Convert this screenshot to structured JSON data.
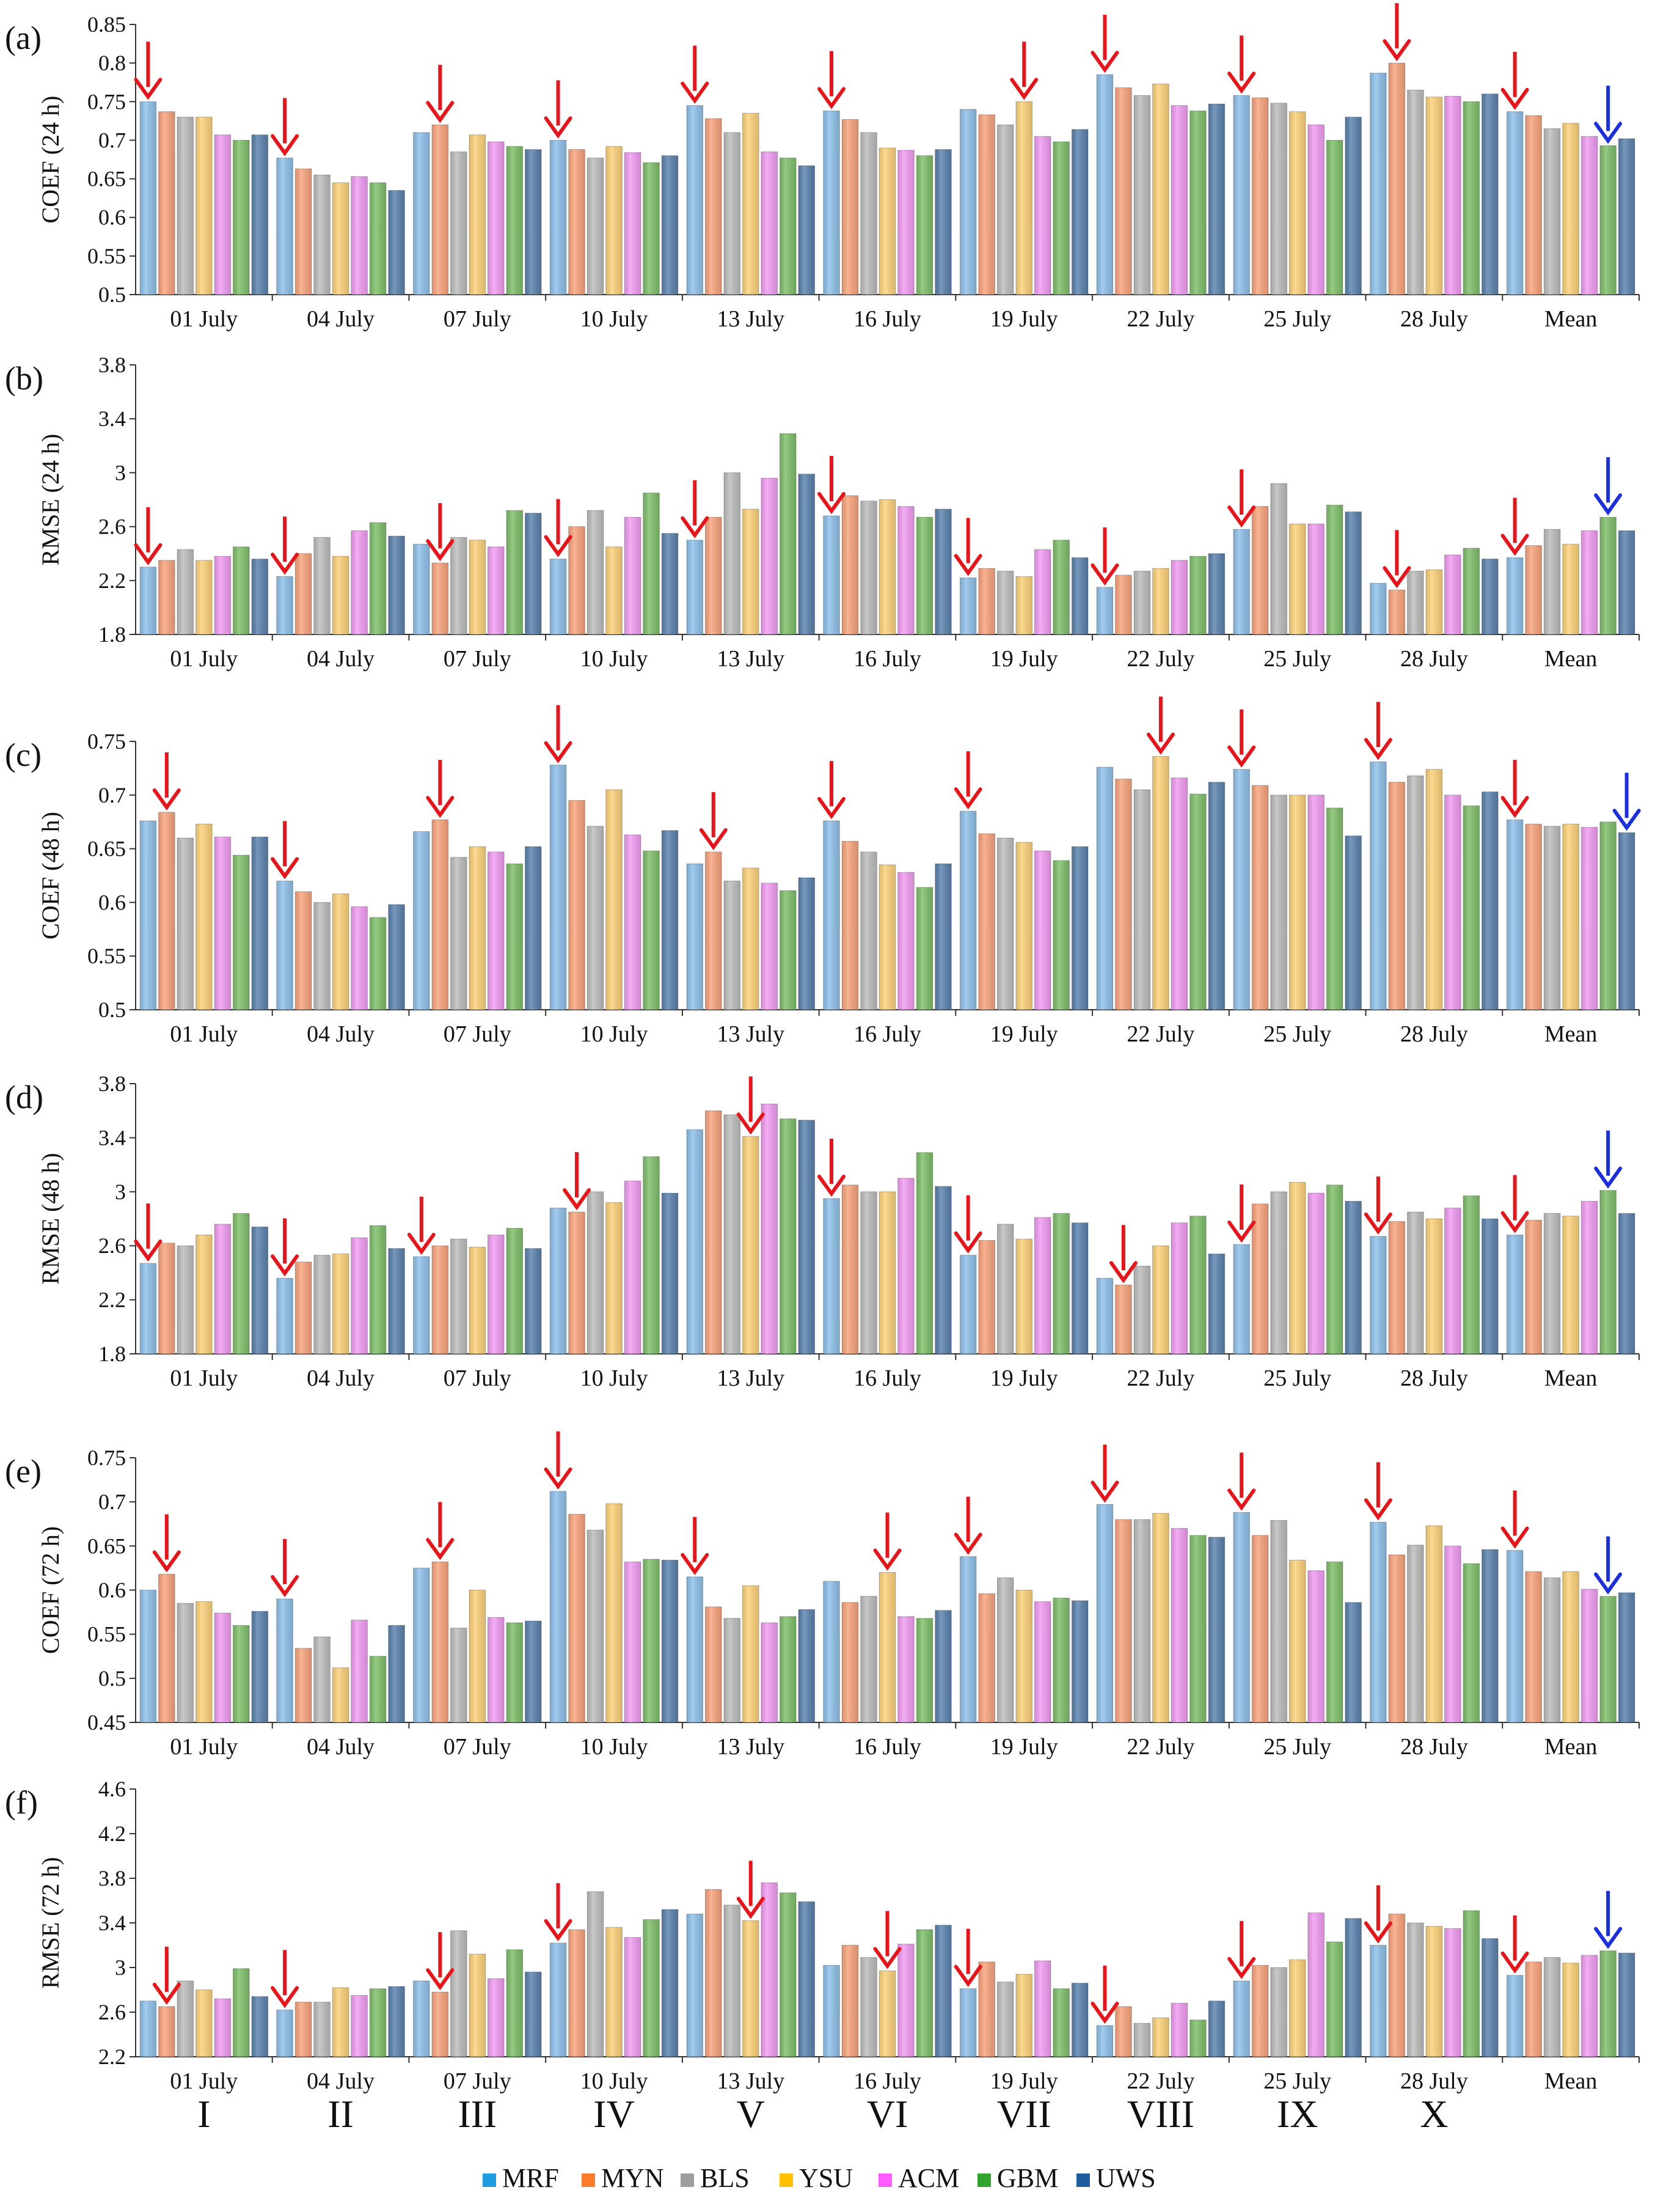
{
  "chart_data": [
    {
      "panel": "(a)",
      "ylabel": "COEF (24 h)",
      "ylim": [
        0.5,
        0.85
      ],
      "ticks": [
        "0.85",
        "0.8",
        "0.75",
        "0.7",
        "0.65",
        "0.6",
        "0.55",
        "0.5"
      ],
      "type": "bar",
      "categories": [
        "01 July",
        "04 July",
        "07 July",
        "10 July",
        "13 July",
        "16 July",
        "19 July",
        "22 July",
        "25 July",
        "28 July",
        "Mean"
      ],
      "values": [
        [
          0.75,
          0.737,
          0.73,
          0.73,
          0.707,
          0.7,
          0.707
        ],
        [
          0.677,
          0.663,
          0.655,
          0.645,
          0.653,
          0.645,
          0.635
        ],
        [
          0.71,
          0.72,
          0.685,
          0.707,
          0.698,
          0.692,
          0.688
        ],
        [
          0.7,
          0.688,
          0.677,
          0.692,
          0.684,
          0.671,
          0.68
        ],
        [
          0.745,
          0.728,
          0.71,
          0.735,
          0.685,
          0.677,
          0.667
        ],
        [
          0.738,
          0.727,
          0.71,
          0.69,
          0.687,
          0.68,
          0.688
        ],
        [
          0.74,
          0.733,
          0.72,
          0.75,
          0.705,
          0.698,
          0.714
        ],
        [
          0.785,
          0.768,
          0.758,
          0.773,
          0.745,
          0.738,
          0.747
        ],
        [
          0.758,
          0.755,
          0.748,
          0.737,
          0.72,
          0.7,
          0.73
        ],
        [
          0.787,
          0.8,
          0.765,
          0.756,
          0.757,
          0.75,
          0.76
        ],
        [
          0.737,
          0.732,
          0.715,
          0.722,
          0.705,
          0.693,
          0.702
        ]
      ],
      "red_arrows": [
        [
          0,
          0
        ],
        [
          1,
          0
        ],
        [
          2,
          1
        ],
        [
          3,
          0
        ],
        [
          4,
          0
        ],
        [
          5,
          0
        ],
        [
          6,
          3
        ],
        [
          7,
          0
        ],
        [
          8,
          0
        ],
        [
          9,
          1
        ],
        [
          10,
          0
        ]
      ],
      "blue_arrows": [
        [
          10,
          5
        ]
      ]
    },
    {
      "panel": "(b)",
      "ylabel": "RMSE (24 h)",
      "ylim": [
        1.8,
        3.8
      ],
      "ticks": [
        "3.8",
        "3.4",
        "3",
        "2.6",
        "2.2",
        "1.8"
      ],
      "type": "bar",
      "categories": [
        "01 July",
        "04 July",
        "07 July",
        "10 July",
        "13 July",
        "16 July",
        "19 July",
        "22 July",
        "25 July",
        "28 July",
        "Mean"
      ],
      "values": [
        [
          2.3,
          2.35,
          2.43,
          2.35,
          2.38,
          2.45,
          2.36
        ],
        [
          2.23,
          2.4,
          2.52,
          2.38,
          2.57,
          2.63,
          2.53
        ],
        [
          2.47,
          2.33,
          2.52,
          2.5,
          2.45,
          2.72,
          2.7
        ],
        [
          2.36,
          2.6,
          2.72,
          2.45,
          2.67,
          2.85,
          2.55
        ],
        [
          2.5,
          2.67,
          3.0,
          2.73,
          2.96,
          3.29,
          2.99
        ],
        [
          2.68,
          2.83,
          2.79,
          2.8,
          2.75,
          2.67,
          2.73
        ],
        [
          2.22,
          2.29,
          2.27,
          2.23,
          2.43,
          2.5,
          2.37
        ],
        [
          2.15,
          2.24,
          2.27,
          2.29,
          2.35,
          2.38,
          2.4
        ],
        [
          2.58,
          2.75,
          2.92,
          2.62,
          2.62,
          2.76,
          2.71
        ],
        [
          2.18,
          2.13,
          2.27,
          2.28,
          2.39,
          2.44,
          2.36
        ],
        [
          2.37,
          2.46,
          2.58,
          2.47,
          2.57,
          2.67,
          2.57
        ]
      ],
      "red_arrows": [
        [
          0,
          0
        ],
        [
          1,
          0
        ],
        [
          2,
          1
        ],
        [
          3,
          0
        ],
        [
          4,
          0
        ],
        [
          5,
          0
        ],
        [
          6,
          0
        ],
        [
          7,
          0
        ],
        [
          8,
          0
        ],
        [
          9,
          1
        ],
        [
          10,
          0
        ]
      ],
      "blue_arrows": [
        [
          10,
          5
        ]
      ]
    },
    {
      "panel": "(c)",
      "ylabel": "COEF (48 h)",
      "ylim": [
        0.5,
        0.75
      ],
      "ticks": [
        "0.75",
        "0.7",
        "0.65",
        "0.6",
        "0.55",
        "0.5"
      ],
      "type": "bar",
      "categories": [
        "01 July",
        "04 July",
        "07 July",
        "10 July",
        "13 July",
        "16 July",
        "19 July",
        "22 July",
        "25 July",
        "28 July",
        "Mean"
      ],
      "values": [
        [
          0.676,
          0.684,
          0.66,
          0.673,
          0.661,
          0.644,
          0.661
        ],
        [
          0.62,
          0.61,
          0.6,
          0.608,
          0.596,
          0.586,
          0.598
        ],
        [
          0.666,
          0.677,
          0.642,
          0.652,
          0.647,
          0.636,
          0.652
        ],
        [
          0.728,
          0.695,
          0.671,
          0.705,
          0.663,
          0.648,
          0.667
        ],
        [
          0.636,
          0.647,
          0.62,
          0.632,
          0.618,
          0.611,
          0.623
        ],
        [
          0.676,
          0.657,
          0.647,
          0.635,
          0.628,
          0.614,
          0.636
        ],
        [
          0.685,
          0.664,
          0.66,
          0.656,
          0.648,
          0.639,
          0.652
        ],
        [
          0.726,
          0.715,
          0.705,
          0.736,
          0.716,
          0.701,
          0.712
        ],
        [
          0.724,
          0.709,
          0.7,
          0.7,
          0.7,
          0.688,
          0.662
        ],
        [
          0.731,
          0.712,
          0.718,
          0.724,
          0.7,
          0.69,
          0.703
        ],
        [
          0.677,
          0.673,
          0.671,
          0.673,
          0.67,
          0.675,
          0.665
        ]
      ],
      "red_arrows": [
        [
          0,
          1
        ],
        [
          1,
          0
        ],
        [
          2,
          1
        ],
        [
          3,
          0
        ],
        [
          4,
          1
        ],
        [
          5,
          0
        ],
        [
          6,
          0
        ],
        [
          7,
          3
        ],
        [
          8,
          0
        ],
        [
          9,
          0
        ],
        [
          10,
          0
        ]
      ],
      "blue_arrows": [
        [
          10,
          6
        ]
      ]
    },
    {
      "panel": "(d)",
      "ylabel": "RMSE (48 h)",
      "ylim": [
        1.8,
        3.8
      ],
      "ticks": [
        "3.8",
        "3.4",
        "3",
        "2.6",
        "2.2",
        "1.8"
      ],
      "type": "bar",
      "categories": [
        "01 July",
        "04 July",
        "07 July",
        "10 July",
        "13 July",
        "16 July",
        "19 July",
        "22 July",
        "25 July",
        "28 July",
        "Mean"
      ],
      "values": [
        [
          2.47,
          2.62,
          2.6,
          2.68,
          2.76,
          2.84,
          2.74
        ],
        [
          2.36,
          2.48,
          2.53,
          2.54,
          2.66,
          2.75,
          2.58
        ],
        [
          2.52,
          2.6,
          2.65,
          2.59,
          2.68,
          2.73,
          2.58
        ],
        [
          2.88,
          2.85,
          3.0,
          2.92,
          3.08,
          3.26,
          2.99
        ],
        [
          3.46,
          3.6,
          3.57,
          3.41,
          3.65,
          3.54,
          3.53
        ],
        [
          2.95,
          3.05,
          3.0,
          3.0,
          3.1,
          3.29,
          3.04
        ],
        [
          2.53,
          2.64,
          2.76,
          2.65,
          2.81,
          2.84,
          2.77
        ],
        [
          2.36,
          2.31,
          2.45,
          2.6,
          2.77,
          2.82,
          2.54
        ],
        [
          2.61,
          2.91,
          3.0,
          3.07,
          2.99,
          3.05,
          2.93
        ],
        [
          2.67,
          2.78,
          2.85,
          2.8,
          2.88,
          2.97,
          2.8
        ],
        [
          2.68,
          2.79,
          2.84,
          2.82,
          2.93,
          3.01,
          2.84
        ]
      ],
      "red_arrows": [
        [
          0,
          0
        ],
        [
          1,
          0
        ],
        [
          2,
          0
        ],
        [
          3,
          1
        ],
        [
          4,
          3
        ],
        [
          5,
          0
        ],
        [
          6,
          0
        ],
        [
          7,
          1
        ],
        [
          8,
          0
        ],
        [
          9,
          0
        ],
        [
          10,
          0
        ]
      ],
      "blue_arrows": [
        [
          10,
          5
        ]
      ]
    },
    {
      "panel": "(e)",
      "ylabel": "COEF (72 h)",
      "ylim": [
        0.45,
        0.75
      ],
      "ticks": [
        "0.75",
        "0.7",
        "0.65",
        "0.6",
        "0.55",
        "0.5",
        "0.45"
      ],
      "type": "bar",
      "categories": [
        "01 July",
        "04 July",
        "07 July",
        "10 July",
        "13 July",
        "16 July",
        "19 July",
        "22 July",
        "25 July",
        "28 July",
        "Mean"
      ],
      "values": [
        [
          0.6,
          0.618,
          0.585,
          0.587,
          0.574,
          0.56,
          0.576
        ],
        [
          0.59,
          0.534,
          0.547,
          0.512,
          0.566,
          0.525,
          0.56
        ],
        [
          0.625,
          0.632,
          0.557,
          0.6,
          0.569,
          0.563,
          0.565
        ],
        [
          0.712,
          0.686,
          0.668,
          0.698,
          0.632,
          0.635,
          0.634
        ],
        [
          0.615,
          0.581,
          0.568,
          0.605,
          0.563,
          0.57,
          0.578
        ],
        [
          0.61,
          0.586,
          0.593,
          0.62,
          0.57,
          0.568,
          0.577
        ],
        [
          0.638,
          0.596,
          0.614,
          0.6,
          0.587,
          0.591,
          0.588
        ],
        [
          0.697,
          0.68,
          0.68,
          0.687,
          0.67,
          0.662,
          0.66
        ],
        [
          0.688,
          0.662,
          0.679,
          0.634,
          0.622,
          0.632,
          0.586
        ],
        [
          0.677,
          0.64,
          0.651,
          0.673,
          0.65,
          0.63,
          0.646
        ],
        [
          0.645,
          0.621,
          0.614,
          0.621,
          0.601,
          0.593,
          0.597
        ]
      ],
      "red_arrows": [
        [
          0,
          1
        ],
        [
          1,
          0
        ],
        [
          2,
          1
        ],
        [
          3,
          0
        ],
        [
          4,
          0
        ],
        [
          5,
          3
        ],
        [
          6,
          0
        ],
        [
          7,
          0
        ],
        [
          8,
          0
        ],
        [
          9,
          0
        ],
        [
          10,
          0
        ]
      ],
      "blue_arrows": [
        [
          10,
          5
        ]
      ]
    },
    {
      "panel": "(f)",
      "ylabel": "RMSE (72 h)",
      "ylim": [
        2.2,
        4.6
      ],
      "ticks": [
        "4.6",
        "4.2",
        "3.8",
        "3.4",
        "3",
        "2.6",
        "2.2"
      ],
      "type": "bar",
      "categories": [
        "01 July",
        "04 July",
        "07 July",
        "10 July",
        "13 July",
        "16 July",
        "19 July",
        "22 July",
        "25 July",
        "28 July",
        "Mean"
      ],
      "values": [
        [
          2.7,
          2.65,
          2.88,
          2.8,
          2.72,
          2.99,
          2.74
        ],
        [
          2.62,
          2.69,
          2.69,
          2.82,
          2.75,
          2.81,
          2.83
        ],
        [
          2.88,
          2.78,
          3.33,
          3.12,
          2.9,
          3.16,
          2.96
        ],
        [
          3.22,
          3.34,
          3.68,
          3.36,
          3.27,
          3.43,
          3.52
        ],
        [
          3.48,
          3.7,
          3.56,
          3.42,
          3.76,
          3.67,
          3.59
        ],
        [
          3.02,
          3.2,
          3.09,
          2.97,
          3.21,
          3.34,
          3.38
        ],
        [
          2.81,
          3.05,
          2.87,
          2.94,
          3.06,
          2.81,
          2.86
        ],
        [
          2.48,
          2.65,
          2.5,
          2.55,
          2.68,
          2.53,
          2.7
        ],
        [
          2.88,
          3.02,
          3.0,
          3.07,
          3.49,
          3.23,
          3.44
        ],
        [
          3.2,
          3.48,
          3.4,
          3.37,
          3.35,
          3.51,
          3.26
        ],
        [
          2.93,
          3.05,
          3.09,
          3.04,
          3.11,
          3.15,
          3.13
        ]
      ],
      "red_arrows": [
        [
          0,
          1
        ],
        [
          1,
          0
        ],
        [
          2,
          1
        ],
        [
          3,
          0
        ],
        [
          4,
          3
        ],
        [
          5,
          3
        ],
        [
          6,
          0
        ],
        [
          7,
          0
        ],
        [
          8,
          0
        ],
        [
          9,
          0
        ],
        [
          10,
          0
        ]
      ],
      "blue_arrows": [
        [
          10,
          5
        ]
      ]
    }
  ],
  "roman_labels": [
    "I",
    "II",
    "III",
    "IV",
    "V",
    "VI",
    "VII",
    "VIII",
    "IX",
    "X"
  ],
  "legend": [
    {
      "name": "MRF",
      "color": "#8fc1ea"
    },
    {
      "name": "MYN",
      "color": "#f9a47c"
    },
    {
      "name": "BLS",
      "color": "#bdbdbd"
    },
    {
      "name": "YSU",
      "color": "#fdd27a"
    },
    {
      "name": "ACM",
      "color": "#f29cf2"
    },
    {
      "name": "GBM",
      "color": "#7fbf6a"
    },
    {
      "name": "UWS",
      "color": "#5b82ad"
    }
  ],
  "legend_swatches": [
    "#1f9be0",
    "#f97b2c",
    "#9e9e9e",
    "#ffc000",
    "#ff5cff",
    "#2fa52f",
    "#1f5e9e"
  ],
  "arrow_colors": {
    "red": "#e8141a",
    "blue": "#1b2fe0"
  }
}
